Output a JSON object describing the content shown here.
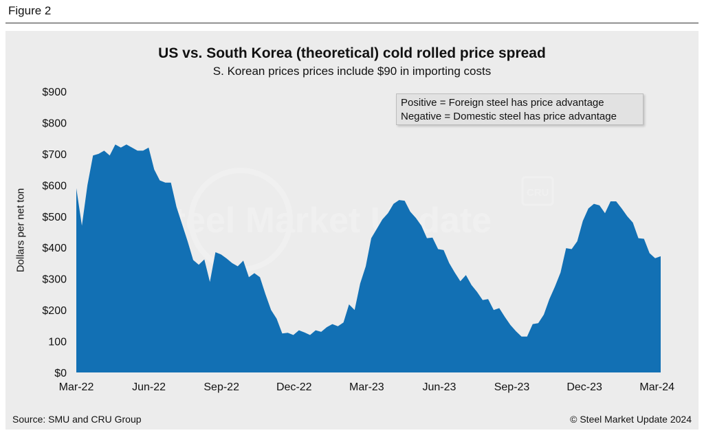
{
  "figure_label": "Figure 2",
  "source": "Source: SMU and CRU Group",
  "copyright": "© Steel Market Update 2024",
  "legend_lines": [
    "Positive = Foreign steel has price advantage",
    "Negative = Domestic steel has price advantage"
  ],
  "colors": {
    "area": "#1270b4",
    "background": "#ececec"
  },
  "chart_data": {
    "type": "area",
    "title": "US vs. South Korea (theoretical) cold rolled price spread",
    "subtitle": "S. Korean prices prices include $90 in importing costs",
    "ylabel": "Dollars per net ton",
    "xlabel": "",
    "ylim": [
      0,
      900
    ],
    "y_ticks": [
      "$0",
      "100",
      "$200",
      "$300",
      "$400",
      "$500",
      "$600",
      "$700",
      "$800",
      "$900"
    ],
    "x_ticks": [
      "Mar-22",
      "Jun-22",
      "Sep-22",
      "Dec-22",
      "Mar-23",
      "Jun-23",
      "Sep-23",
      "Dec-23",
      "Mar-24"
    ],
    "grid": false,
    "x_months_from_mar22": [
      0,
      0.23,
      0.46,
      0.69,
      0.92,
      1.15,
      1.38,
      1.61,
      1.84,
      2.07,
      2.3,
      2.53,
      2.76,
      2.99,
      3.22,
      3.45,
      3.68,
      3.91,
      4.14,
      4.37,
      4.6,
      4.83,
      5.06,
      5.29,
      5.52,
      5.75,
      5.98,
      6.21,
      6.44,
      6.67,
      6.9,
      7.13,
      7.36,
      7.59,
      7.82,
      8.05,
      8.28,
      8.51,
      8.74,
      8.97,
      9.2,
      9.43,
      9.66,
      9.89,
      10.12,
      10.35,
      10.58,
      10.81,
      11.04,
      11.27,
      11.5,
      11.73,
      11.96,
      12.19,
      12.42,
      12.65,
      12.88,
      13.11,
      13.34,
      13.57,
      13.8,
      14.03,
      14.26,
      14.49,
      14.72,
      14.95,
      15.18,
      15.41,
      15.64,
      15.87,
      16.1,
      16.33,
      16.56,
      16.79,
      17.02,
      17.25,
      17.48,
      17.71,
      17.94,
      18.17,
      18.4,
      18.63,
      18.86,
      19.09,
      19.32,
      19.55,
      19.78,
      20.01,
      20.24,
      20.47,
      20.7,
      20.93,
      21.16,
      21.39,
      21.62,
      21.85,
      22.08,
      22.31,
      22.54,
      22.77,
      23.0,
      23.23,
      23.46,
      23.69,
      23.92,
      24.15
    ],
    "values": [
      590,
      470,
      600,
      695,
      700,
      710,
      695,
      730,
      720,
      730,
      720,
      710,
      710,
      720,
      650,
      615,
      608,
      608,
      530,
      475,
      420,
      360,
      345,
      362,
      290,
      385,
      378,
      365,
      350,
      340,
      358,
      305,
      318,
      305,
      250,
      200,
      172,
      125,
      127,
      120,
      135,
      128,
      120,
      135,
      130,
      145,
      155,
      148,
      160,
      218,
      200,
      285,
      340,
      430,
      460,
      490,
      510,
      540,
      552,
      550,
      515,
      495,
      470,
      430,
      432,
      395,
      392,
      350,
      320,
      292,
      312,
      280,
      258,
      232,
      235,
      200,
      206,
      178,
      152,
      132,
      115,
      115,
      155,
      158,
      185,
      235,
      275,
      320,
      398,
      395,
      420,
      485,
      525,
      540,
      535,
      510,
      548,
      548,
      525,
      500,
      480,
      430,
      428,
      382,
      366,
      372
    ]
  }
}
